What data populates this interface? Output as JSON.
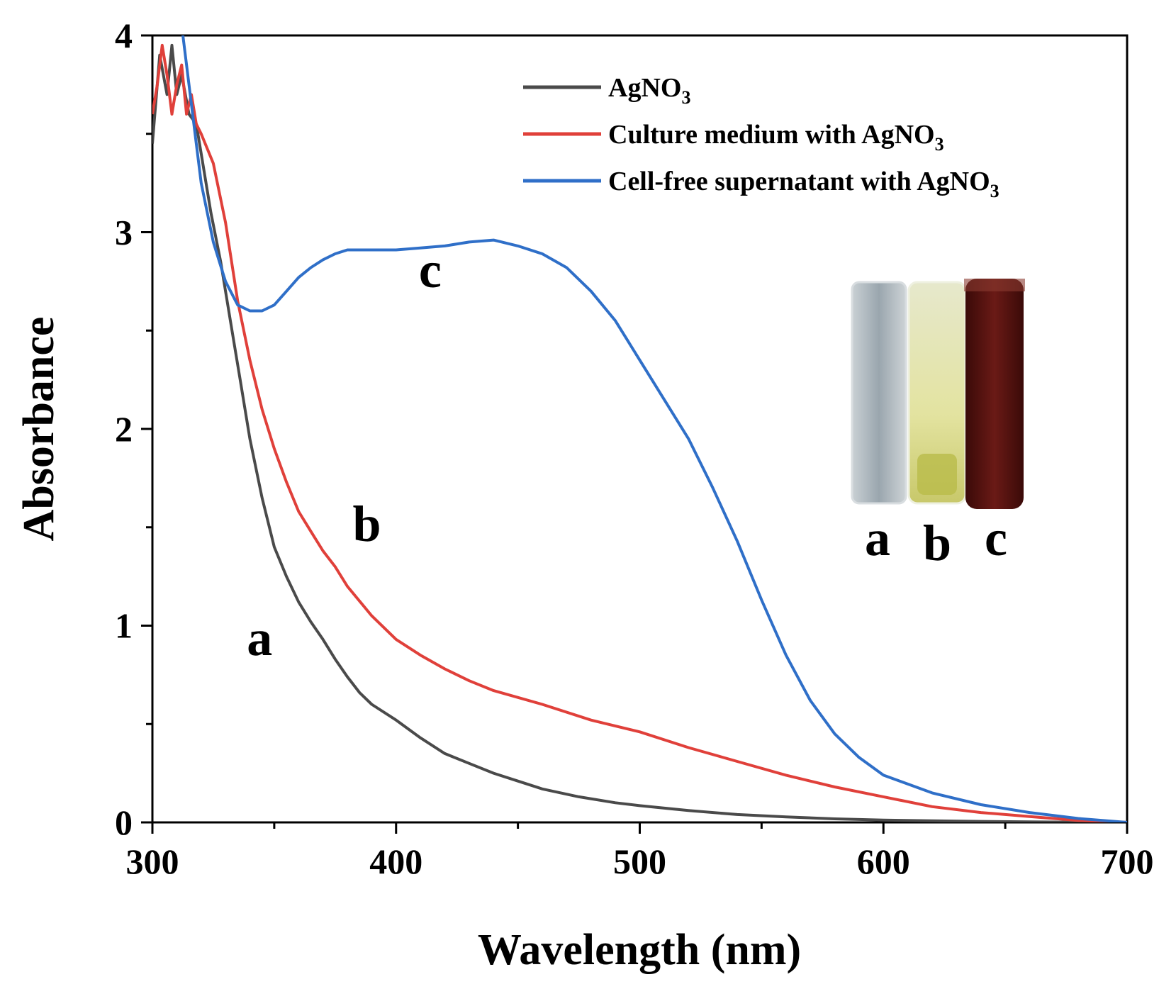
{
  "chart_data": {
    "type": "line",
    "xlabel": "Wavelength (nm)",
    "ylabel": "Absorbance",
    "xlim": [
      300,
      700
    ],
    "ylim": [
      0,
      4
    ],
    "xticks": [
      300,
      400,
      500,
      600,
      700
    ],
    "yticks": [
      0,
      1,
      2,
      3,
      4
    ],
    "grid": false,
    "legend_position": "top-right",
    "series": [
      {
        "name": "AgNO",
        "name_subscript": "3",
        "color": "#4a4a4a",
        "curve_label": "a",
        "points": [
          [
            300,
            3.45
          ],
          [
            303,
            3.9
          ],
          [
            306,
            3.7
          ],
          [
            308,
            3.95
          ],
          [
            310,
            3.7
          ],
          [
            312,
            3.8
          ],
          [
            315,
            3.6
          ],
          [
            318,
            3.55
          ],
          [
            320,
            3.4
          ],
          [
            324,
            3.1
          ],
          [
            328,
            2.85
          ],
          [
            332,
            2.55
          ],
          [
            336,
            2.25
          ],
          [
            340,
            1.95
          ],
          [
            345,
            1.65
          ],
          [
            350,
            1.4
          ],
          [
            355,
            1.25
          ],
          [
            360,
            1.12
          ],
          [
            365,
            1.02
          ],
          [
            370,
            0.93
          ],
          [
            375,
            0.83
          ],
          [
            380,
            0.74
          ],
          [
            385,
            0.66
          ],
          [
            390,
            0.6
          ],
          [
            400,
            0.52
          ],
          [
            410,
            0.43
          ],
          [
            420,
            0.35
          ],
          [
            430,
            0.3
          ],
          [
            440,
            0.25
          ],
          [
            450,
            0.21
          ],
          [
            460,
            0.17
          ],
          [
            475,
            0.13
          ],
          [
            490,
            0.1
          ],
          [
            500,
            0.085
          ],
          [
            520,
            0.06
          ],
          [
            540,
            0.04
          ],
          [
            560,
            0.028
          ],
          [
            580,
            0.018
          ],
          [
            600,
            0.012
          ],
          [
            620,
            0.008
          ],
          [
            640,
            0.005
          ],
          [
            660,
            0.003
          ],
          [
            680,
            0.001
          ],
          [
            700,
            0.0
          ]
        ]
      },
      {
        "name": "Culture medium with AgNO",
        "name_subscript": "3",
        "color": "#e0403a",
        "curve_label": "b",
        "points": [
          [
            300,
            3.6
          ],
          [
            302,
            3.75
          ],
          [
            304,
            3.95
          ],
          [
            306,
            3.8
          ],
          [
            308,
            3.6
          ],
          [
            310,
            3.75
          ],
          [
            312,
            3.85
          ],
          [
            314,
            3.6
          ],
          [
            316,
            3.7
          ],
          [
            318,
            3.55
          ],
          [
            320,
            3.5
          ],
          [
            325,
            3.35
          ],
          [
            330,
            3.05
          ],
          [
            335,
            2.65
          ],
          [
            340,
            2.35
          ],
          [
            345,
            2.1
          ],
          [
            350,
            1.9
          ],
          [
            355,
            1.73
          ],
          [
            360,
            1.58
          ],
          [
            365,
            1.48
          ],
          [
            370,
            1.38
          ],
          [
            375,
            1.3
          ],
          [
            380,
            1.2
          ],
          [
            390,
            1.05
          ],
          [
            400,
            0.93
          ],
          [
            410,
            0.85
          ],
          [
            420,
            0.78
          ],
          [
            430,
            0.72
          ],
          [
            440,
            0.67
          ],
          [
            460,
            0.6
          ],
          [
            480,
            0.52
          ],
          [
            500,
            0.46
          ],
          [
            520,
            0.38
          ],
          [
            540,
            0.31
          ],
          [
            560,
            0.24
          ],
          [
            580,
            0.18
          ],
          [
            600,
            0.13
          ],
          [
            620,
            0.08
          ],
          [
            640,
            0.05
          ],
          [
            660,
            0.03
          ],
          [
            680,
            0.01
          ],
          [
            700,
            0.0
          ]
        ]
      },
      {
        "name": "Cell-free supernatant with AgNO",
        "name_subscript": "3",
        "color": "#2f6fc8",
        "curve_label": "c",
        "points": [
          [
            300,
            4.3
          ],
          [
            305,
            4.5
          ],
          [
            310,
            4.35
          ],
          [
            312,
            4.05
          ],
          [
            315,
            3.75
          ],
          [
            318,
            3.45
          ],
          [
            320,
            3.25
          ],
          [
            325,
            2.95
          ],
          [
            330,
            2.75
          ],
          [
            335,
            2.63
          ],
          [
            340,
            2.6
          ],
          [
            345,
            2.6
          ],
          [
            350,
            2.63
          ],
          [
            355,
            2.7
          ],
          [
            360,
            2.77
          ],
          [
            365,
            2.82
          ],
          [
            370,
            2.86
          ],
          [
            375,
            2.89
          ],
          [
            380,
            2.91
          ],
          [
            390,
            2.91
          ],
          [
            400,
            2.91
          ],
          [
            410,
            2.92
          ],
          [
            420,
            2.93
          ],
          [
            430,
            2.95
          ],
          [
            440,
            2.96
          ],
          [
            450,
            2.93
          ],
          [
            460,
            2.89
          ],
          [
            470,
            2.82
          ],
          [
            480,
            2.7
          ],
          [
            490,
            2.55
          ],
          [
            500,
            2.35
          ],
          [
            510,
            2.15
          ],
          [
            520,
            1.95
          ],
          [
            530,
            1.7
          ],
          [
            540,
            1.43
          ],
          [
            550,
            1.13
          ],
          [
            560,
            0.85
          ],
          [
            570,
            0.62
          ],
          [
            580,
            0.45
          ],
          [
            590,
            0.33
          ],
          [
            600,
            0.24
          ],
          [
            620,
            0.15
          ],
          [
            640,
            0.09
          ],
          [
            660,
            0.05
          ],
          [
            680,
            0.02
          ],
          [
            700,
            0.0
          ]
        ]
      }
    ],
    "curve_labels": [
      {
        "text": "a",
        "x": 344,
        "y": 0.85
      },
      {
        "text": "b",
        "x": 388,
        "y": 1.43
      },
      {
        "text": "c",
        "x": 414,
        "y": 2.72
      }
    ],
    "inset": {
      "description_visible": false,
      "labels": [
        "a",
        "b",
        "c"
      ],
      "vial_colors": [
        "#b9c1c7",
        "#dcdca8",
        "#5a1412"
      ]
    }
  }
}
